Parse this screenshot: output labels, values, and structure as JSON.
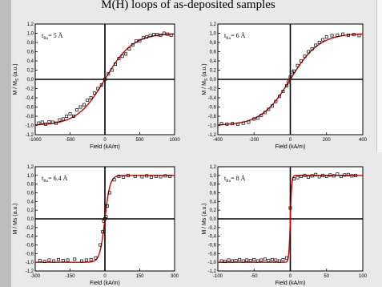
{
  "title": "M(H) loops of as-deposited samples",
  "colors": {
    "background": "#e9e9e9",
    "fit_line": "#d40000",
    "points": "#000000",
    "left_bar": "#bdbdbd"
  },
  "chart_data": [
    {
      "type": "scatter",
      "label_main": "t",
      "label_sub": "Ru",
      "label_rest": "= 5 Å",
      "xlabel": "Field (kA/m)",
      "ylabel": "M / M",
      "ylabel_sub": "S",
      "ylabel_rest": " (a.u.)",
      "xlim": [
        -1000,
        1000
      ],
      "ylim": [
        -1.2,
        1.2
      ],
      "xticks": [
        -1000,
        -500,
        0,
        500,
        1000
      ],
      "yticks": [
        "-1,2",
        "-1,0",
        "-0,8",
        "-0,6",
        "-0,4",
        "-0,2",
        "0,0",
        "0,2",
        "0,4",
        "0,6",
        "0,8",
        "1,0",
        "1,2"
      ],
      "fit": {
        "Ms": 1.0,
        "Hc": 0,
        "width": 400
      },
      "x": [
        -950,
        -900,
        -850,
        -800,
        -750,
        -700,
        -650,
        -600,
        -550,
        -500,
        -450,
        -400,
        -350,
        -300,
        -250,
        -200,
        -150,
        -100,
        -50,
        0,
        50,
        100,
        150,
        200,
        250,
        300,
        350,
        400,
        450,
        500,
        550,
        600,
        650,
        700,
        750,
        800,
        850,
        900,
        950
      ],
      "y": [
        -0.95,
        -0.93,
        -0.97,
        -0.92,
        -0.93,
        -0.95,
        -0.88,
        -0.86,
        -0.8,
        -0.75,
        -0.8,
        -0.66,
        -0.6,
        -0.55,
        -0.45,
        -0.4,
        -0.3,
        -0.2,
        -0.12,
        0.0,
        0.12,
        0.2,
        0.33,
        0.45,
        0.5,
        0.55,
        0.66,
        0.75,
        0.83,
        0.84,
        0.9,
        0.92,
        0.95,
        0.97,
        0.97,
        0.96,
        1.0,
        0.98,
        0.96
      ]
    },
    {
      "type": "scatter",
      "label_main": "t",
      "label_sub": "Ru",
      "label_rest": "= 6 Å",
      "xlabel": "Field (kA/m)",
      "ylabel": "M / M",
      "ylabel_sub": "S",
      "ylabel_rest": " (a.u.)",
      "xlim": [
        -400,
        400
      ],
      "ylim": [
        -1.2,
        1.2
      ],
      "xticks": [
        -400,
        -200,
        0,
        200,
        400
      ],
      "yticks": [
        "-1,2",
        "-1,0",
        "-0,8",
        "-0,6",
        "-0,4",
        "-0,2",
        "0,0",
        "0,2",
        "0,4",
        "0,6",
        "0,8",
        "1,0",
        "1,2"
      ],
      "fit": {
        "Ms": 1.0,
        "Hc": 0,
        "width": 160
      },
      "x": [
        -380,
        -350,
        -320,
        -290,
        -260,
        -230,
        -200,
        -180,
        -160,
        -140,
        -120,
        -100,
        -80,
        -60,
        -40,
        -20,
        -10,
        0,
        10,
        20,
        40,
        60,
        80,
        100,
        120,
        140,
        160,
        180,
        200,
        230,
        260,
        290,
        320,
        350,
        380
      ],
      "y": [
        -0.96,
        -0.97,
        -0.96,
        -0.97,
        -0.95,
        -0.93,
        -0.86,
        -0.84,
        -0.78,
        -0.72,
        -0.65,
        -0.58,
        -0.48,
        -0.37,
        -0.26,
        -0.14,
        -0.06,
        0.05,
        0.15,
        0.18,
        0.3,
        0.4,
        0.5,
        0.6,
        0.66,
        0.74,
        0.8,
        0.86,
        0.92,
        0.95,
        0.96,
        0.98,
        0.96,
        0.97,
        0.95
      ]
    },
    {
      "type": "scatter",
      "label_main": "t",
      "label_sub": "Ru",
      "label_rest": "= 6.4 Å",
      "xlabel": "Field (kA/m)",
      "ylabel": "M / Ms (a.u.)",
      "ylabel_sub": "",
      "ylabel_rest": "",
      "xlim": [
        -300,
        300
      ],
      "ylim": [
        -1.2,
        1.2
      ],
      "xticks": [
        -300,
        -150,
        0,
        150,
        300
      ],
      "yticks": [
        "-1,2",
        "-1,0",
        "-0,8",
        "-0,6",
        "-0,4",
        "-0,2",
        "0,0",
        "0,2",
        "0,4",
        "0,6",
        "0,8",
        "1,0",
        "1,2"
      ],
      "fit": {
        "Ms": 1.0,
        "Hc": 0,
        "width": 22
      },
      "x": [
        -280,
        -260,
        -240,
        -220,
        -200,
        -180,
        -160,
        -130,
        -100,
        -80,
        -60,
        -40,
        -20,
        -10,
        -5,
        0,
        5,
        10,
        20,
        40,
        60,
        80,
        100,
        130,
        160,
        180,
        200,
        220,
        240,
        260,
        280
      ],
      "y": [
        -0.96,
        -0.98,
        -0.95,
        -0.97,
        -0.94,
        -0.96,
        -0.95,
        -0.93,
        -0.97,
        -0.95,
        -0.94,
        -0.9,
        -0.6,
        -0.3,
        -0.05,
        0.0,
        0.05,
        0.3,
        0.6,
        0.9,
        0.98,
        0.96,
        1.0,
        0.98,
        0.97,
        0.99,
        0.96,
        0.98,
        0.97,
        0.99,
        0.98
      ]
    },
    {
      "type": "scatter",
      "label_main": "t",
      "label_sub": "Ru",
      "label_rest": "= 8 Å",
      "xlabel": "Field (kA/m)",
      "ylabel": "M / Ms (a.u.)",
      "ylabel_sub": "",
      "ylabel_rest": "",
      "xlim": [
        -100,
        100
      ],
      "ylim": [
        -1.2,
        1.2
      ],
      "xticks": [
        -100,
        -50,
        0,
        50,
        100
      ],
      "yticks": [
        "-1,2",
        "-1,0",
        "-0,8",
        "-0,6",
        "-0,4",
        "-0,2",
        "0,0",
        "0,2",
        "0,4",
        "0,6",
        "0,8",
        "1,0",
        "1,2"
      ],
      "fit": {
        "Ms": 1.0,
        "Hc": 0,
        "width": 2
      },
      "x": [
        -95,
        -90,
        -85,
        -80,
        -75,
        -70,
        -65,
        -60,
        -55,
        -50,
        -45,
        -40,
        -35,
        -30,
        -25,
        -20,
        -15,
        -10,
        -5,
        0,
        5,
        10,
        15,
        20,
        25,
        30,
        35,
        40,
        45,
        50,
        55,
        60,
        65,
        70,
        75,
        80,
        85,
        90
      ],
      "y": [
        -0.97,
        -0.98,
        -0.95,
        -0.97,
        -0.96,
        -0.94,
        -0.97,
        -0.95,
        -0.96,
        -0.94,
        -0.97,
        -0.95,
        -0.93,
        -0.96,
        -0.94,
        -0.95,
        -0.97,
        -0.94,
        -0.9,
        0.25,
        0.92,
        0.95,
        0.98,
        1.0,
        0.96,
        0.99,
        1.02,
        0.97,
        1.0,
        0.98,
        1.01,
        0.99,
        1.03,
        0.98,
        1.01,
        1.02,
        0.99,
        1.0
      ]
    }
  ]
}
